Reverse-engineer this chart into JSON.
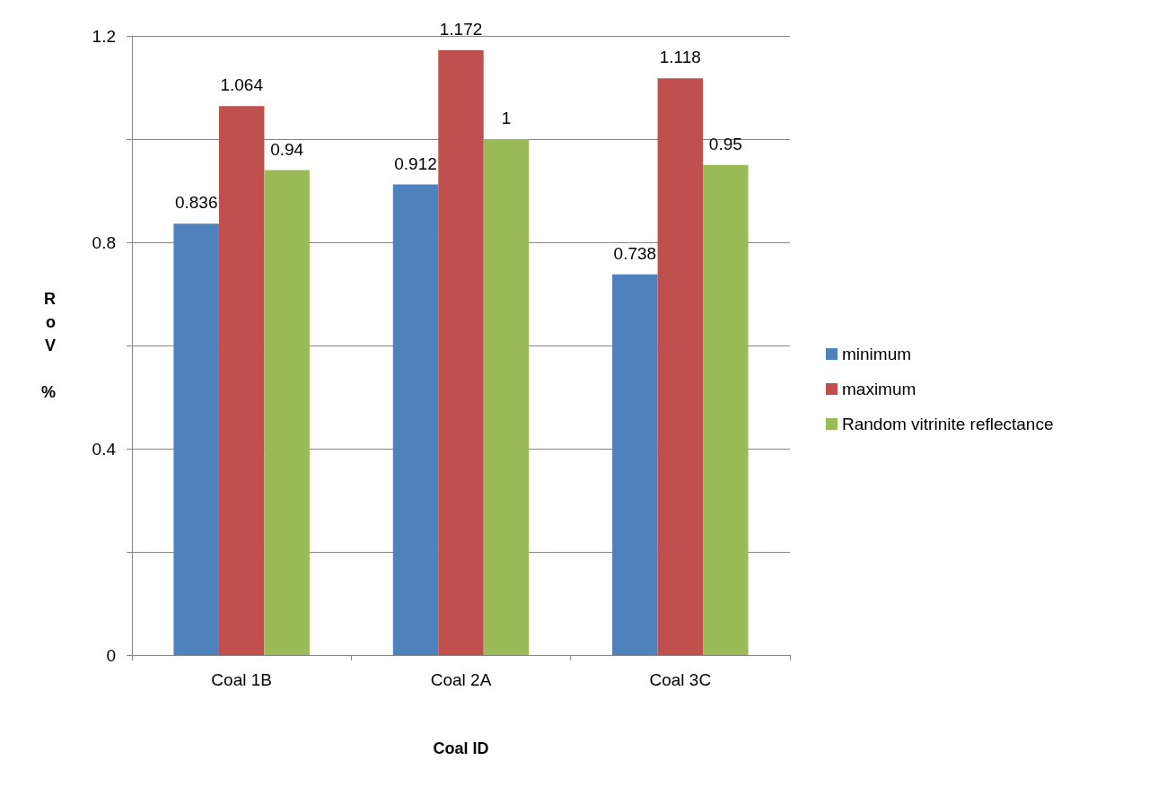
{
  "chart_data": {
    "type": "bar",
    "xlabel": "Coal ID",
    "ylabel": "RoV %",
    "categories": [
      "Coal 1B",
      "Coal 2A",
      "Coal 3C"
    ],
    "series": [
      {
        "name": "minimum",
        "color": "#4f81bd",
        "values": [
          0.836,
          0.912,
          0.738
        ]
      },
      {
        "name": "maximum",
        "color": "#c0504d",
        "values": [
          1.064,
          1.172,
          1.118
        ]
      },
      {
        "name": "Random vitrinite reflectance",
        "color": "#9bbb59",
        "values": [
          0.94,
          1,
          0.95
        ]
      }
    ],
    "ylim": [
      0,
      1.2
    ],
    "yticks": [
      0,
      {
        "value": 0.2,
        "label": null
      },
      0.4,
      {
        "value": 0.6,
        "label": null
      },
      0.8,
      {
        "value": 1.0,
        "label": null
      },
      1.2
    ],
    "grid": "y",
    "legend": "right",
    "data_labels": true
  }
}
